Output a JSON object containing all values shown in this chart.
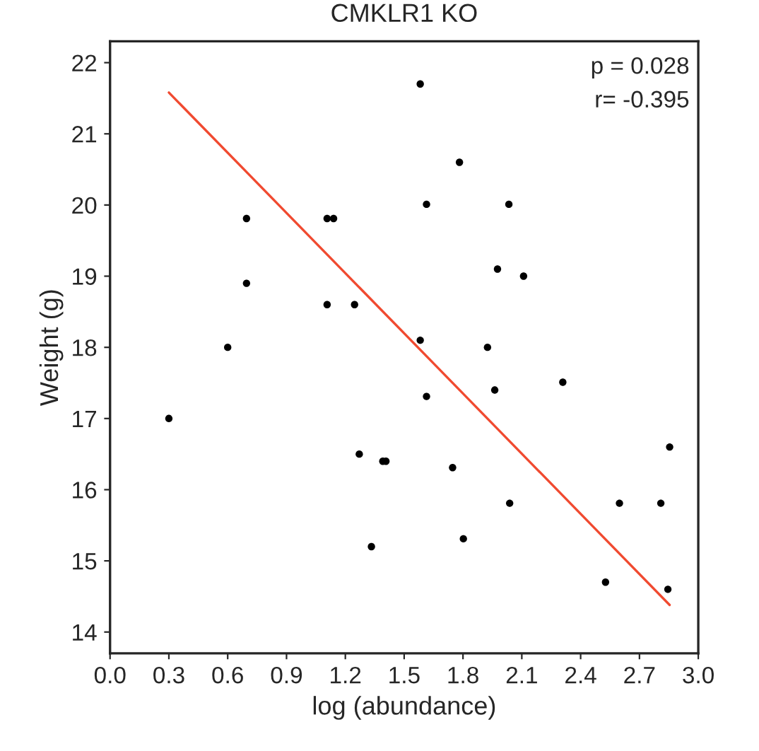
{
  "chart_data": {
    "type": "scatter",
    "title": "CMKLR1 KO",
    "xlabel": "log (abundance)",
    "ylabel": "Weight (g)",
    "xlim": [
      0.0,
      3.0
    ],
    "xticks": [
      {
        "value": 0,
        "label": "0.0"
      },
      0.3,
      0.6,
      0.9,
      1.2,
      1.5,
      1.8,
      2.1,
      2.4,
      2.7,
      {
        "value": 3,
        "label": "3.0"
      }
    ],
    "ylim": [
      13.7,
      22.3
    ],
    "yticks": [
      14,
      15,
      16,
      17,
      18,
      19,
      20,
      21,
      22
    ],
    "grid": false,
    "legend": false,
    "marker": "circle",
    "annotations": [
      "p = 0.028",
      "r= -0.395"
    ],
    "series": [
      {
        "color": "#000000",
        "x": [
          0.3,
          0.6,
          0.696,
          0.696,
          1.107,
          1.14,
          1.107,
          1.247,
          1.271,
          1.391,
          1.407,
          1.333,
          1.582,
          1.782,
          1.614,
          2.034,
          1.976,
          2.109,
          1.582,
          1.925,
          1.614,
          1.962,
          2.309,
          1.747,
          2.038,
          2.598,
          2.809,
          2.854,
          1.802,
          2.527,
          2.845
        ],
        "values": [
          17.0,
          18.0,
          19.81,
          18.9,
          19.81,
          19.81,
          18.6,
          18.6,
          16.5,
          16.4,
          16.4,
          15.2,
          21.7,
          20.6,
          20.01,
          20.01,
          19.1,
          19.0,
          18.1,
          18.0,
          17.31,
          17.4,
          17.51,
          16.31,
          15.81,
          15.81,
          15.81,
          16.6,
          15.31,
          14.7,
          14.6
        ]
      },
      {
        "type": "line",
        "color": "#f04a30",
        "marker": "none",
        "x": [
          0.3,
          2.854
        ],
        "values": [
          21.58,
          14.38
        ]
      }
    ]
  }
}
